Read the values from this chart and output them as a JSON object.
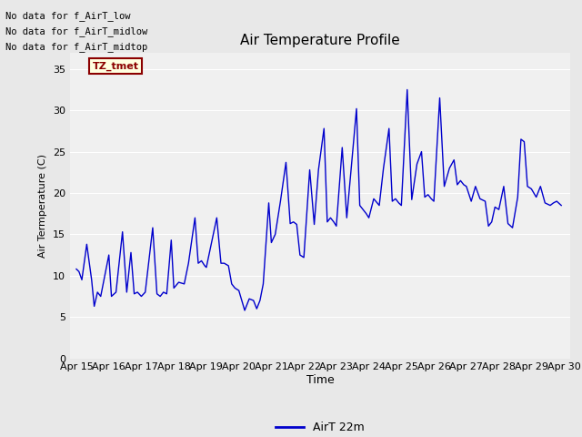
{
  "title": "Air Temperature Profile",
  "xlabel": "Time",
  "ylabel": "Air Termperature (C)",
  "legend_label": "AirT 22m",
  "no_data_texts": [
    "No data for f_AirT_low",
    "No data for f_AirT_midlow",
    "No data for f_AirT_midtop"
  ],
  "tz_label": "TZ_tmet",
  "ylim": [
    0,
    37
  ],
  "yticks": [
    0,
    5,
    10,
    15,
    20,
    25,
    30,
    35
  ],
  "xtick_labels": [
    "Apr 15",
    "Apr 16",
    "Apr 17",
    "Apr 18",
    "Apr 19",
    "Apr 20",
    "Apr 21",
    "Apr 22",
    "Apr 23",
    "Apr 24",
    "Apr 25",
    "Apr 26",
    "Apr 27",
    "Apr 28",
    "Apr 29",
    "Apr 30"
  ],
  "line_color": "#0000cc",
  "bg_color": "#e8e8e8",
  "plot_bg_color": "#f0f0f0",
  "grid_color": "#ffffff",
  "x": [
    0.0,
    0.08,
    0.17,
    0.32,
    0.47,
    0.55,
    0.65,
    0.75,
    1.0,
    1.08,
    1.22,
    1.42,
    1.55,
    1.68,
    1.78,
    1.88,
    2.0,
    2.12,
    2.35,
    2.48,
    2.58,
    2.68,
    2.78,
    2.92,
    3.0,
    3.15,
    3.32,
    3.45,
    3.65,
    3.75,
    3.85,
    3.95,
    4.0,
    4.32,
    4.45,
    4.55,
    4.68,
    4.78,
    4.88,
    5.0,
    5.18,
    5.32,
    5.45,
    5.55,
    5.65,
    5.75,
    5.92,
    6.0,
    6.12,
    6.28,
    6.45,
    6.58,
    6.68,
    6.78,
    6.88,
    7.0,
    7.18,
    7.32,
    7.45,
    7.62,
    7.72,
    7.82,
    7.92,
    8.0,
    8.18,
    8.32,
    8.48,
    8.62,
    8.72,
    8.82,
    8.92,
    9.0,
    9.15,
    9.32,
    9.45,
    9.62,
    9.72,
    9.82,
    9.92,
    10.0,
    10.18,
    10.32,
    10.48,
    10.62,
    10.72,
    10.82,
    10.92,
    11.0,
    11.18,
    11.32,
    11.48,
    11.62,
    11.72,
    11.82,
    11.92,
    12.0,
    12.15,
    12.28,
    12.42,
    12.58,
    12.68,
    12.78,
    12.88,
    13.0,
    13.15,
    13.28,
    13.42,
    13.58,
    13.68,
    13.78,
    13.88,
    14.0,
    14.15,
    14.28,
    14.42,
    14.58,
    14.68,
    14.78,
    14.92
  ],
  "y": [
    10.8,
    10.5,
    9.5,
    13.8,
    9.5,
    6.3,
    8.0,
    7.5,
    12.5,
    7.5,
    8.0,
    15.3,
    8.0,
    12.8,
    7.8,
    8.0,
    7.5,
    8.0,
    15.8,
    7.8,
    7.5,
    8.0,
    7.8,
    14.3,
    8.5,
    9.2,
    9.0,
    11.5,
    17.0,
    11.5,
    11.8,
    11.2,
    11.0,
    17.0,
    11.5,
    11.5,
    11.2,
    9.0,
    8.5,
    8.2,
    5.8,
    7.2,
    7.0,
    6.0,
    7.0,
    9.0,
    18.8,
    14.0,
    15.0,
    19.0,
    23.7,
    16.3,
    16.5,
    16.2,
    12.5,
    12.2,
    22.8,
    16.2,
    22.8,
    27.8,
    16.5,
    17.0,
    16.5,
    16.0,
    25.5,
    17.0,
    24.0,
    30.2,
    18.5,
    18.0,
    17.5,
    17.0,
    19.3,
    18.5,
    23.0,
    27.8,
    19.0,
    19.3,
    18.8,
    18.5,
    32.5,
    19.2,
    23.5,
    25.0,
    19.5,
    19.8,
    19.3,
    19.0,
    31.5,
    20.8,
    23.0,
    24.0,
    21.0,
    21.5,
    21.0,
    20.8,
    19.0,
    20.8,
    19.3,
    19.0,
    16.0,
    16.5,
    18.3,
    18.0,
    20.8,
    16.3,
    15.8,
    19.5,
    26.5,
    26.2,
    20.8,
    20.5,
    19.5,
    20.8,
    18.8,
    18.5,
    18.8,
    19.0,
    18.5
  ]
}
